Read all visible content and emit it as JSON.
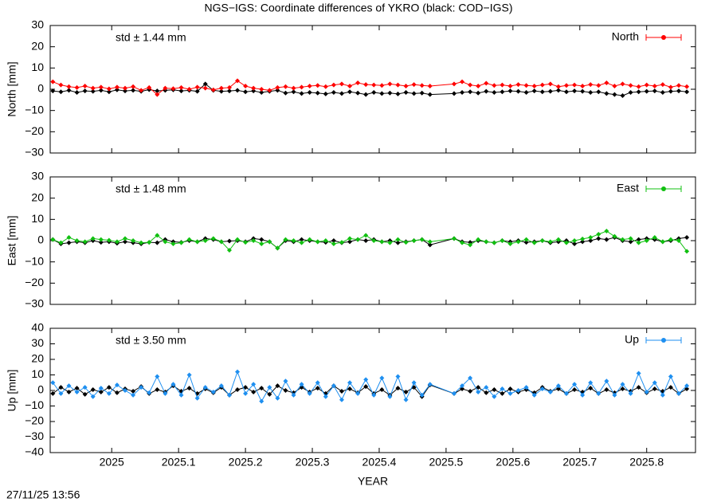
{
  "title": "NGS−IGS: Coordinate differences of YKRO (black: COD−IGS)",
  "timestamp": "27/11/25 13:56",
  "chart_data": [
    {
      "type": "line",
      "ylabel": "North [mm]",
      "annotation": "std ± 1.44 mm",
      "xlim": [
        2024.908,
        2025.873
      ],
      "xticks": [
        2025,
        2025.1,
        2025.2,
        2025.3,
        2025.4,
        2025.5,
        2025.6,
        2025.7,
        2025.8
      ],
      "ylim": [
        -30,
        30
      ],
      "yticks": [
        {
          "value": -30,
          "label": "−30"
        },
        {
          "value": -20,
          "label": "−20"
        },
        {
          "value": -10,
          "label": "−10"
        },
        0,
        10,
        20,
        30
      ],
      "legend": "top-right",
      "x": [
        2024.912,
        2024.924,
        2024.936,
        2024.948,
        2024.96,
        2024.972,
        2024.984,
        2024.996,
        2025.008,
        2025.02,
        2025.032,
        2025.044,
        2025.056,
        2025.068,
        2025.08,
        2025.092,
        2025.104,
        2025.116,
        2025.128,
        2025.14,
        2025.152,
        2025.164,
        2025.176,
        2025.188,
        2025.2,
        2025.212,
        2025.224,
        2025.236,
        2025.248,
        2025.26,
        2025.272,
        2025.284,
        2025.296,
        2025.308,
        2025.32,
        2025.332,
        2025.344,
        2025.356,
        2025.368,
        2025.38,
        2025.392,
        2025.404,
        2025.416,
        2025.428,
        2025.44,
        2025.452,
        2025.464,
        2025.476,
        2025.512,
        2025.524,
        2025.536,
        2025.548,
        2025.56,
        2025.572,
        2025.584,
        2025.596,
        2025.608,
        2025.62,
        2025.632,
        2025.644,
        2025.656,
        2025.668,
        2025.68,
        2025.692,
        2025.704,
        2025.716,
        2025.728,
        2025.74,
        2025.752,
        2025.764,
        2025.776,
        2025.788,
        2025.8,
        2025.812,
        2025.824,
        2025.836,
        2025.848,
        2025.86
      ],
      "series": [
        {
          "color": "#000000",
          "values": [
            -0.8,
            -1.2,
            -0.5,
            -1.5,
            -0.8,
            -1.0,
            -0.5,
            -1.2,
            -0.3,
            -0.8,
            -0.5,
            -1.0,
            -0.2,
            -0.8,
            -0.5,
            -0.3,
            -0.8,
            -0.5,
            -1.0,
            2.5,
            -0.5,
            -1.0,
            -0.8,
            -0.5,
            -1.2,
            -0.8,
            -1.5,
            -1.0,
            -0.5,
            -1.8,
            -1.2,
            -2.0,
            -1.5,
            -1.8,
            -2.2,
            -1.5,
            -2.0,
            -1.2,
            -1.8,
            -2.5,
            -1.5,
            -2.0,
            -1.8,
            -2.2,
            -1.5,
            -2.0,
            -1.8,
            -2.5,
            -2.0,
            -1.5,
            -1.2,
            -1.8,
            -1.0,
            -1.5,
            -1.2,
            -0.8,
            -1.0,
            -1.5,
            -0.8,
            -1.2,
            -1.0,
            -0.5,
            -1.2,
            -0.8,
            -1.0,
            -1.5,
            -1.2,
            -2.0,
            -2.5,
            -3.0,
            -1.5,
            -1.2,
            -1.0,
            -0.8,
            -1.5,
            -1.0,
            -0.8,
            -1.2
          ]
        },
        {
          "name": "North",
          "color": "#ff0000",
          "values": [
            3.5,
            2.0,
            1.2,
            0.8,
            1.5,
            0.5,
            1.0,
            0.2,
            1.0,
            0.5,
            1.2,
            -0.5,
            0.8,
            -2.5,
            0.5,
            0.3,
            0.8,
            0.0,
            1.0,
            0.5,
            -0.3,
            0.5,
            0.8,
            4.0,
            1.5,
            0.5,
            0.0,
            -0.5,
            0.8,
            1.2,
            0.5,
            1.0,
            1.5,
            1.8,
            1.2,
            2.0,
            2.5,
            1.5,
            3.0,
            2.2,
            2.0,
            1.8,
            2.5,
            2.0,
            1.5,
            2.2,
            1.8,
            1.5,
            2.5,
            3.5,
            2.0,
            1.5,
            2.8,
            1.8,
            2.0,
            1.5,
            2.2,
            1.8,
            1.5,
            2.0,
            2.5,
            1.2,
            1.8,
            2.0,
            1.5,
            2.2,
            1.8,
            3.0,
            1.5,
            2.5,
            1.8,
            1.2,
            2.0,
            1.5,
            2.2,
            1.0,
            1.8,
            1.2
          ]
        }
      ]
    },
    {
      "type": "line",
      "ylabel": "East [mm]",
      "annotation": "std ± 1.48 mm",
      "xlim": [
        2024.908,
        2025.873
      ],
      "xticks": [
        2025,
        2025.1,
        2025.2,
        2025.3,
        2025.4,
        2025.5,
        2025.6,
        2025.7,
        2025.8
      ],
      "ylim": [
        -30,
        30
      ],
      "yticks": [
        {
          "value": -30,
          "label": "−30"
        },
        {
          "value": -20,
          "label": "−20"
        },
        {
          "value": -10,
          "label": "−10"
        },
        0,
        10,
        20,
        30
      ],
      "legend": "top-right",
      "x": [
        2024.912,
        2024.924,
        2024.936,
        2024.948,
        2024.96,
        2024.972,
        2024.984,
        2024.996,
        2025.008,
        2025.02,
        2025.032,
        2025.044,
        2025.056,
        2025.068,
        2025.08,
        2025.092,
        2025.104,
        2025.116,
        2025.128,
        2025.14,
        2025.152,
        2025.164,
        2025.176,
        2025.188,
        2025.2,
        2025.212,
        2025.224,
        2025.236,
        2025.248,
        2025.26,
        2025.272,
        2025.284,
        2025.296,
        2025.308,
        2025.32,
        2025.332,
        2025.344,
        2025.356,
        2025.368,
        2025.38,
        2025.392,
        2025.404,
        2025.416,
        2025.428,
        2025.44,
        2025.452,
        2025.464,
        2025.476,
        2025.512,
        2025.524,
        2025.536,
        2025.548,
        2025.56,
        2025.572,
        2025.584,
        2025.596,
        2025.608,
        2025.62,
        2025.632,
        2025.644,
        2025.656,
        2025.668,
        2025.68,
        2025.692,
        2025.704,
        2025.716,
        2025.728,
        2025.74,
        2025.752,
        2025.764,
        2025.776,
        2025.788,
        2025.8,
        2025.812,
        2025.824,
        2025.836,
        2025.848,
        2025.86
      ],
      "series": [
        {
          "color": "#000000",
          "values": [
            0.5,
            -1.5,
            -1.0,
            -0.5,
            -1.0,
            0.0,
            -0.8,
            -0.5,
            -1.2,
            -0.5,
            -1.0,
            -1.5,
            -0.8,
            -1.0,
            0.5,
            -0.5,
            -0.8,
            0.0,
            -0.5,
            1.0,
            0.5,
            -0.5,
            -0.2,
            0.0,
            -0.5,
            1.0,
            0.5,
            -0.5,
            -3.5,
            0.0,
            -0.5,
            0.5,
            0.0,
            -0.5,
            -0.8,
            0.0,
            -1.0,
            -0.5,
            0.5,
            0.0,
            0.5,
            -0.5,
            0.0,
            -1.0,
            -0.5,
            0.0,
            0.5,
            -2.0,
            1.0,
            -0.5,
            -0.8,
            0.0,
            -0.5,
            -1.0,
            0.0,
            -0.5,
            0.0,
            -0.8,
            -0.5,
            0.0,
            -1.0,
            -0.5,
            0.0,
            -1.5,
            -0.5,
            0.0,
            1.0,
            0.5,
            1.5,
            0.0,
            -0.5,
            0.5,
            1.0,
            0.5,
            -0.5,
            0.0,
            1.0,
            1.5
          ]
        },
        {
          "name": "East",
          "color": "#10c010",
          "values": [
            0.5,
            -1.0,
            1.5,
            0.0,
            -0.5,
            1.0,
            0.5,
            0.2,
            -0.5,
            1.0,
            0.0,
            -1.0,
            -0.8,
            2.5,
            -0.5,
            -1.5,
            -1.0,
            0.5,
            -0.5,
            0.0,
            1.0,
            -0.5,
            -4.5,
            0.5,
            -0.8,
            0.0,
            -1.5,
            -0.5,
            -3.5,
            0.5,
            0.0,
            -1.0,
            0.5,
            -0.5,
            0.0,
            -1.5,
            -0.8,
            1.0,
            0.5,
            2.5,
            0.0,
            -0.5,
            -1.0,
            0.5,
            -0.8,
            0.0,
            0.5,
            -0.5,
            1.0,
            -1.0,
            -2.0,
            0.5,
            -0.5,
            -1.0,
            0.0,
            -1.5,
            -0.5,
            0.5,
            -1.0,
            0.0,
            -0.5,
            0.5,
            -1.0,
            0.0,
            0.8,
            1.5,
            3.0,
            4.5,
            2.0,
            0.5,
            1.0,
            -1.0,
            0.0,
            1.5,
            -0.5,
            0.5,
            0.0,
            -5.0
          ]
        }
      ]
    },
    {
      "type": "line",
      "ylabel": "Up [mm]",
      "annotation": "std ± 3.50 mm",
      "xlabel": "YEAR",
      "xlim": [
        2024.908,
        2025.873
      ],
      "xticks": [
        2025,
        2025.1,
        2025.2,
        2025.3,
        2025.4,
        2025.5,
        2025.6,
        2025.7,
        2025.8
      ],
      "ylim": [
        -40,
        40
      ],
      "yticks": [
        {
          "value": -40,
          "label": "−40"
        },
        {
          "value": -30,
          "label": "−30"
        },
        {
          "value": -20,
          "label": "−20"
        },
        {
          "value": -10,
          "label": "−10"
        },
        0,
        10,
        20,
        30,
        40
      ],
      "legend": "top-right",
      "x": [
        2024.912,
        2024.924,
        2024.936,
        2024.948,
        2024.96,
        2024.972,
        2024.984,
        2024.996,
        2025.008,
        2025.02,
        2025.032,
        2025.044,
        2025.056,
        2025.068,
        2025.08,
        2025.092,
        2025.104,
        2025.116,
        2025.128,
        2025.14,
        2025.152,
        2025.164,
        2025.176,
        2025.188,
        2025.2,
        2025.212,
        2025.224,
        2025.236,
        2025.248,
        2025.26,
        2025.272,
        2025.284,
        2025.296,
        2025.308,
        2025.32,
        2025.332,
        2025.344,
        2025.356,
        2025.368,
        2025.38,
        2025.392,
        2025.404,
        2025.416,
        2025.428,
        2025.44,
        2025.452,
        2025.464,
        2025.476,
        2025.512,
        2025.524,
        2025.536,
        2025.548,
        2025.56,
        2025.572,
        2025.584,
        2025.596,
        2025.608,
        2025.62,
        2025.632,
        2025.644,
        2025.656,
        2025.668,
        2025.68,
        2025.692,
        2025.704,
        2025.716,
        2025.728,
        2025.74,
        2025.752,
        2025.764,
        2025.776,
        2025.788,
        2025.8,
        2025.812,
        2025.824,
        2025.836,
        2025.848,
        2025.86
      ],
      "series": [
        {
          "color": "#000000",
          "values": [
            -2.0,
            2.0,
            -1.0,
            1.5,
            -2.5,
            0.5,
            -1.0,
            2.0,
            -1.5,
            1.0,
            -0.5,
            2.5,
            -2.0,
            0.5,
            -1.0,
            3.0,
            -0.5,
            1.5,
            -2.0,
            1.0,
            -1.5,
            2.0,
            -3.0,
            0.5,
            2.0,
            -1.0,
            1.5,
            -2.5,
            3.0,
            0.0,
            -1.5,
            2.0,
            -1.0,
            1.5,
            -2.0,
            3.0,
            -0.5,
            1.0,
            -1.5,
            2.5,
            -2.0,
            0.5,
            -3.0,
            1.5,
            -1.0,
            2.0,
            -4.0,
            3.5,
            -2.0,
            1.0,
            -0.5,
            2.0,
            -1.5,
            0.5,
            -2.0,
            1.0,
            -1.0,
            0.5,
            -1.5,
            2.0,
            -0.5,
            1.0,
            -2.0,
            0.5,
            -1.0,
            1.5,
            -2.0,
            0.5,
            -1.5,
            1.0,
            -0.5,
            2.0,
            -1.5,
            1.0,
            -0.5,
            2.0,
            -2.0,
            1.0
          ]
        },
        {
          "name": "Up",
          "color": "#1e8ff0",
          "values": [
            5.0,
            -2.0,
            3.0,
            -1.0,
            2.0,
            -4.0,
            1.5,
            -2.0,
            3.5,
            0.0,
            -3.0,
            2.0,
            -1.5,
            9.0,
            -2.0,
            4.0,
            -3.0,
            10.0,
            -5.0,
            2.0,
            -1.0,
            3.0,
            -3.0,
            12.0,
            -2.0,
            4.0,
            -7.0,
            2.0,
            -5.0,
            6.0,
            -3.0,
            4.0,
            -2.0,
            5.0,
            -4.0,
            3.0,
            -6.0,
            5.0,
            -2.0,
            7.0,
            -3.0,
            8.0,
            -4.0,
            9.0,
            -6.0,
            5.0,
            -3.0,
            4.0,
            -2.0,
            3.0,
            8.0,
            -1.0,
            2.0,
            -4.0,
            1.0,
            -2.0,
            0.0,
            2.0,
            -3.0,
            1.0,
            -1.0,
            3.0,
            -2.0,
            4.0,
            -3.0,
            5.0,
            -2.0,
            6.0,
            -3.0,
            4.0,
            -2.0,
            11.0,
            -1.0,
            5.0,
            -3.0,
            9.0,
            -2.0,
            3.0
          ]
        }
      ]
    }
  ]
}
